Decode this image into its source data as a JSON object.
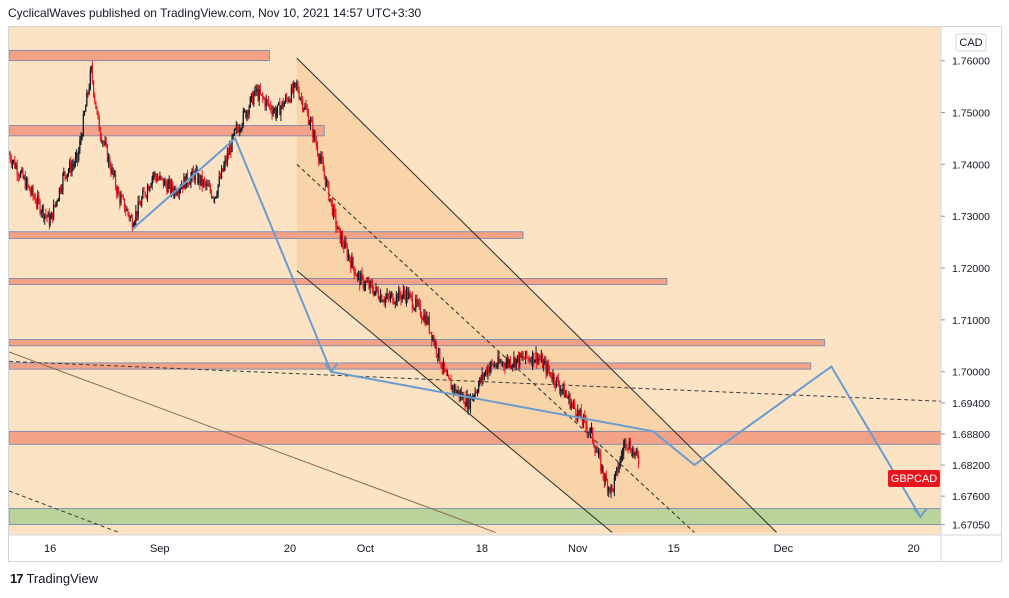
{
  "header": {
    "attribution": "CyclicalWaves published on TradingView.com, Nov 10, 2021 14:57 UTC+3:30"
  },
  "footer": {
    "logo_glyph": "17",
    "brand": "TradingView"
  },
  "colors": {
    "background_zone": "#fbe3c4",
    "channel_fill": "#f9cfa0",
    "resistance_zone": "#f4a287",
    "support_zone": "#b9d39a",
    "up_candle": "#131722",
    "down_candle": "#e8151f",
    "projection_line": "#6a9bd1",
    "price_badge": "#e8151f"
  },
  "chart_data": {
    "type": "candlestick",
    "symbol": "GBPCAD",
    "currency_label": "CAD",
    "price_badge": "GBPCAD",
    "y_ticks": [
      "1.76000",
      "1.75000",
      "1.74000",
      "1.73000",
      "1.72000",
      "1.71000",
      "1.70000",
      "1.69400",
      "1.68800",
      "1.68200",
      "1.67600",
      "1.67050"
    ],
    "x_ticks": [
      "16",
      "Sep",
      "20",
      "Oct",
      "18",
      "Nov",
      "15",
      "Dec",
      "20"
    ],
    "ylim": [
      1.6685,
      1.7665
    ],
    "x_range": [
      "2021-08-10",
      "2021-12-24"
    ],
    "price_path": [
      [
        "2021-08-10",
        1.742
      ],
      [
        "2021-08-13",
        1.735
      ],
      [
        "2021-08-16",
        1.729
      ],
      [
        "2021-08-18",
        1.738
      ],
      [
        "2021-08-20",
        1.741
      ],
      [
        "2021-08-22",
        1.758
      ],
      [
        "2021-08-23",
        1.748
      ],
      [
        "2021-08-26",
        1.734
      ],
      [
        "2021-08-28",
        1.729
      ],
      [
        "2021-08-31",
        1.738
      ],
      [
        "2021-09-03",
        1.735
      ],
      [
        "2021-09-06",
        1.738
      ],
      [
        "2021-09-09",
        1.734
      ],
      [
        "2021-09-12",
        1.746
      ],
      [
        "2021-09-15",
        1.754
      ],
      [
        "2021-09-18",
        1.75
      ],
      [
        "2021-09-21",
        1.755
      ],
      [
        "2021-09-23",
        1.748
      ],
      [
        "2021-09-25",
        1.738
      ],
      [
        "2021-09-27",
        1.727
      ],
      [
        "2021-09-30",
        1.718
      ],
      [
        "2021-10-04",
        1.714
      ],
      [
        "2021-10-07",
        1.715
      ],
      [
        "2021-10-10",
        1.71
      ],
      [
        "2021-10-13",
        1.698
      ],
      [
        "2021-10-16",
        1.694
      ],
      [
        "2021-10-19",
        1.701
      ],
      [
        "2021-10-22",
        1.702
      ],
      [
        "2021-10-26",
        1.703
      ],
      [
        "2021-10-29",
        1.698
      ],
      [
        "2021-11-01",
        1.692
      ],
      [
        "2021-11-03",
        1.688
      ],
      [
        "2021-11-05",
        1.679
      ],
      [
        "2021-11-06",
        1.677
      ],
      [
        "2021-11-08",
        1.687
      ],
      [
        "2021-11-10",
        1.6825
      ]
    ],
    "horizontal_zones": [
      {
        "kind": "resistance",
        "from": 1.762,
        "to": 1.76,
        "x_end": "2021-09-17"
      },
      {
        "kind": "resistance",
        "from": 1.7475,
        "to": 1.7455,
        "x_end": "2021-09-25"
      },
      {
        "kind": "resistance",
        "from": 1.727,
        "to": 1.7257,
        "x_end": "2021-10-24"
      },
      {
        "kind": "resistance",
        "from": 1.718,
        "to": 1.7168,
        "x_end": "2021-11-14"
      },
      {
        "kind": "resistance",
        "from": 1.7062,
        "to": 1.705,
        "x_end": "2021-12-07"
      },
      {
        "kind": "resistance",
        "from": 1.7017,
        "to": 1.7005,
        "x_end": "2021-12-05"
      },
      {
        "kind": "resistance",
        "from": 1.6885,
        "to": 1.686,
        "x_end": "2021-12-24"
      },
      {
        "kind": "support",
        "from": 1.6736,
        "to": 1.6705,
        "x_end": "2021-12-24"
      }
    ],
    "channel": {
      "upper": [
        [
          "2021-09-21",
          1.7605
        ],
        [
          "2021-11-30",
          1.669
        ]
      ],
      "lower": [
        [
          "2021-09-21",
          1.7195
        ],
        [
          "2021-11-06",
          1.669
        ]
      ],
      "mid": [
        [
          "2021-09-21",
          1.74
        ],
        [
          "2021-11-18",
          1.669
        ]
      ]
    },
    "trendlines": [
      {
        "style": "dashed",
        "points": [
          [
            "2021-08-10",
            1.702
          ],
          [
            "2021-12-24",
            1.6943
          ]
        ]
      },
      {
        "style": "solid",
        "points": [
          [
            "2021-08-10",
            1.7038
          ],
          [
            "2021-10-20",
            1.669
          ]
        ]
      },
      {
        "style": "dashed",
        "points": [
          [
            "2021-08-10",
            1.677
          ],
          [
            "2021-08-26",
            1.669
          ]
        ]
      }
    ],
    "projection_path": [
      [
        "2021-08-28",
        1.7275
      ],
      [
        "2021-09-12",
        1.745
      ],
      [
        "2021-09-26",
        1.7
      ],
      [
        "2021-11-12",
        1.6885
      ],
      [
        "2021-11-18",
        1.682
      ],
      [
        "2021-12-08",
        1.701
      ],
      [
        "2021-12-21",
        1.672
      ]
    ],
    "projection_arrows": [
      [
        "2021-09-26",
        1.7
      ],
      [
        "2021-12-21",
        1.672
      ]
    ]
  }
}
